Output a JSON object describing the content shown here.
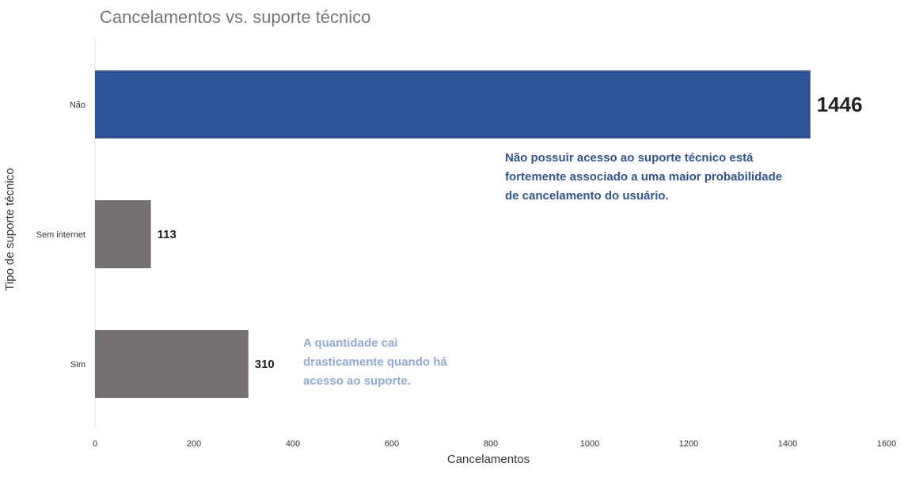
{
  "chart_data": {
    "type": "bar",
    "orientation": "horizontal",
    "title": "Cancelamentos vs. suporte técnico",
    "xlabel": "Cancelamentos",
    "ylabel": "Tipo de suporte técnico",
    "categories": [
      "Não",
      "Sem internet",
      "Sim"
    ],
    "values": [
      1446,
      113,
      310
    ],
    "xlim": [
      0,
      1600
    ],
    "xticks": [
      0,
      200,
      400,
      600,
      800,
      1000,
      1200,
      1400,
      1600
    ],
    "grid": false,
    "legend": "none",
    "colors": {
      "highlight": "#2f5597",
      "default": "#767171",
      "title": "#777777",
      "annotation_secondary": "#8faadc"
    },
    "annotations": [
      {
        "lines": [
          "Não possuir acesso ao suporte técnico está",
          "fortemente associado a uma maior probabilidade",
          "de cancelamento do usuário."
        ],
        "color": "#2f5597"
      },
      {
        "lines": [
          "A quantidade cai",
          "drasticamente quando há",
          "acesso ao suporte."
        ],
        "color": "#8faadc"
      }
    ]
  }
}
